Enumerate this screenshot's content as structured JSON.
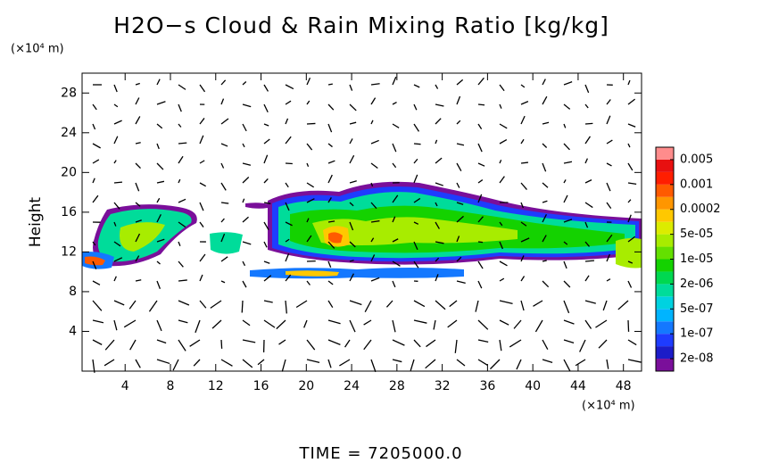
{
  "chart_data": {
    "type": "contour",
    "title": "H2O−s Cloud & Rain Mixing Ratio [kg/kg]",
    "ylabel": "Height",
    "xunit": "(×10⁴ m)",
    "yunit": "(×10⁴ m)",
    "footer": "TIME = 7205000.0",
    "xlim": [
      0.2,
      49.6
    ],
    "ylim": [
      0,
      30
    ],
    "xticks": [
      4,
      8,
      12,
      16,
      20,
      24,
      28,
      32,
      36,
      40,
      44,
      48
    ],
    "yticks": [
      4,
      8,
      12,
      16,
      20,
      24,
      28
    ],
    "colorbar": {
      "colors": [
        "#7a0f9a",
        "#1c1cc8",
        "#1e3cff",
        "#1478ff",
        "#00b4ff",
        "#00d2e0",
        "#00dc9a",
        "#00d850",
        "#14d200",
        "#64e000",
        "#a8ec00",
        "#dcec00",
        "#ffc800",
        "#ff9600",
        "#ff5a00",
        "#ff1e00",
        "#e81010",
        "#ff8c8c"
      ],
      "ticks": [
        {
          "value": 2e-08,
          "label": "2e-08"
        },
        {
          "value": 1e-07,
          "label": "1e-07"
        },
        {
          "value": 5e-07,
          "label": "5e-07"
        },
        {
          "value": 2e-06,
          "label": "2e-06"
        },
        {
          "value": 1e-05,
          "label": "1e-05"
        },
        {
          "value": 5e-05,
          "label": "5e-05"
        },
        0.0002,
        0.001,
        0.005
      ]
    }
  }
}
